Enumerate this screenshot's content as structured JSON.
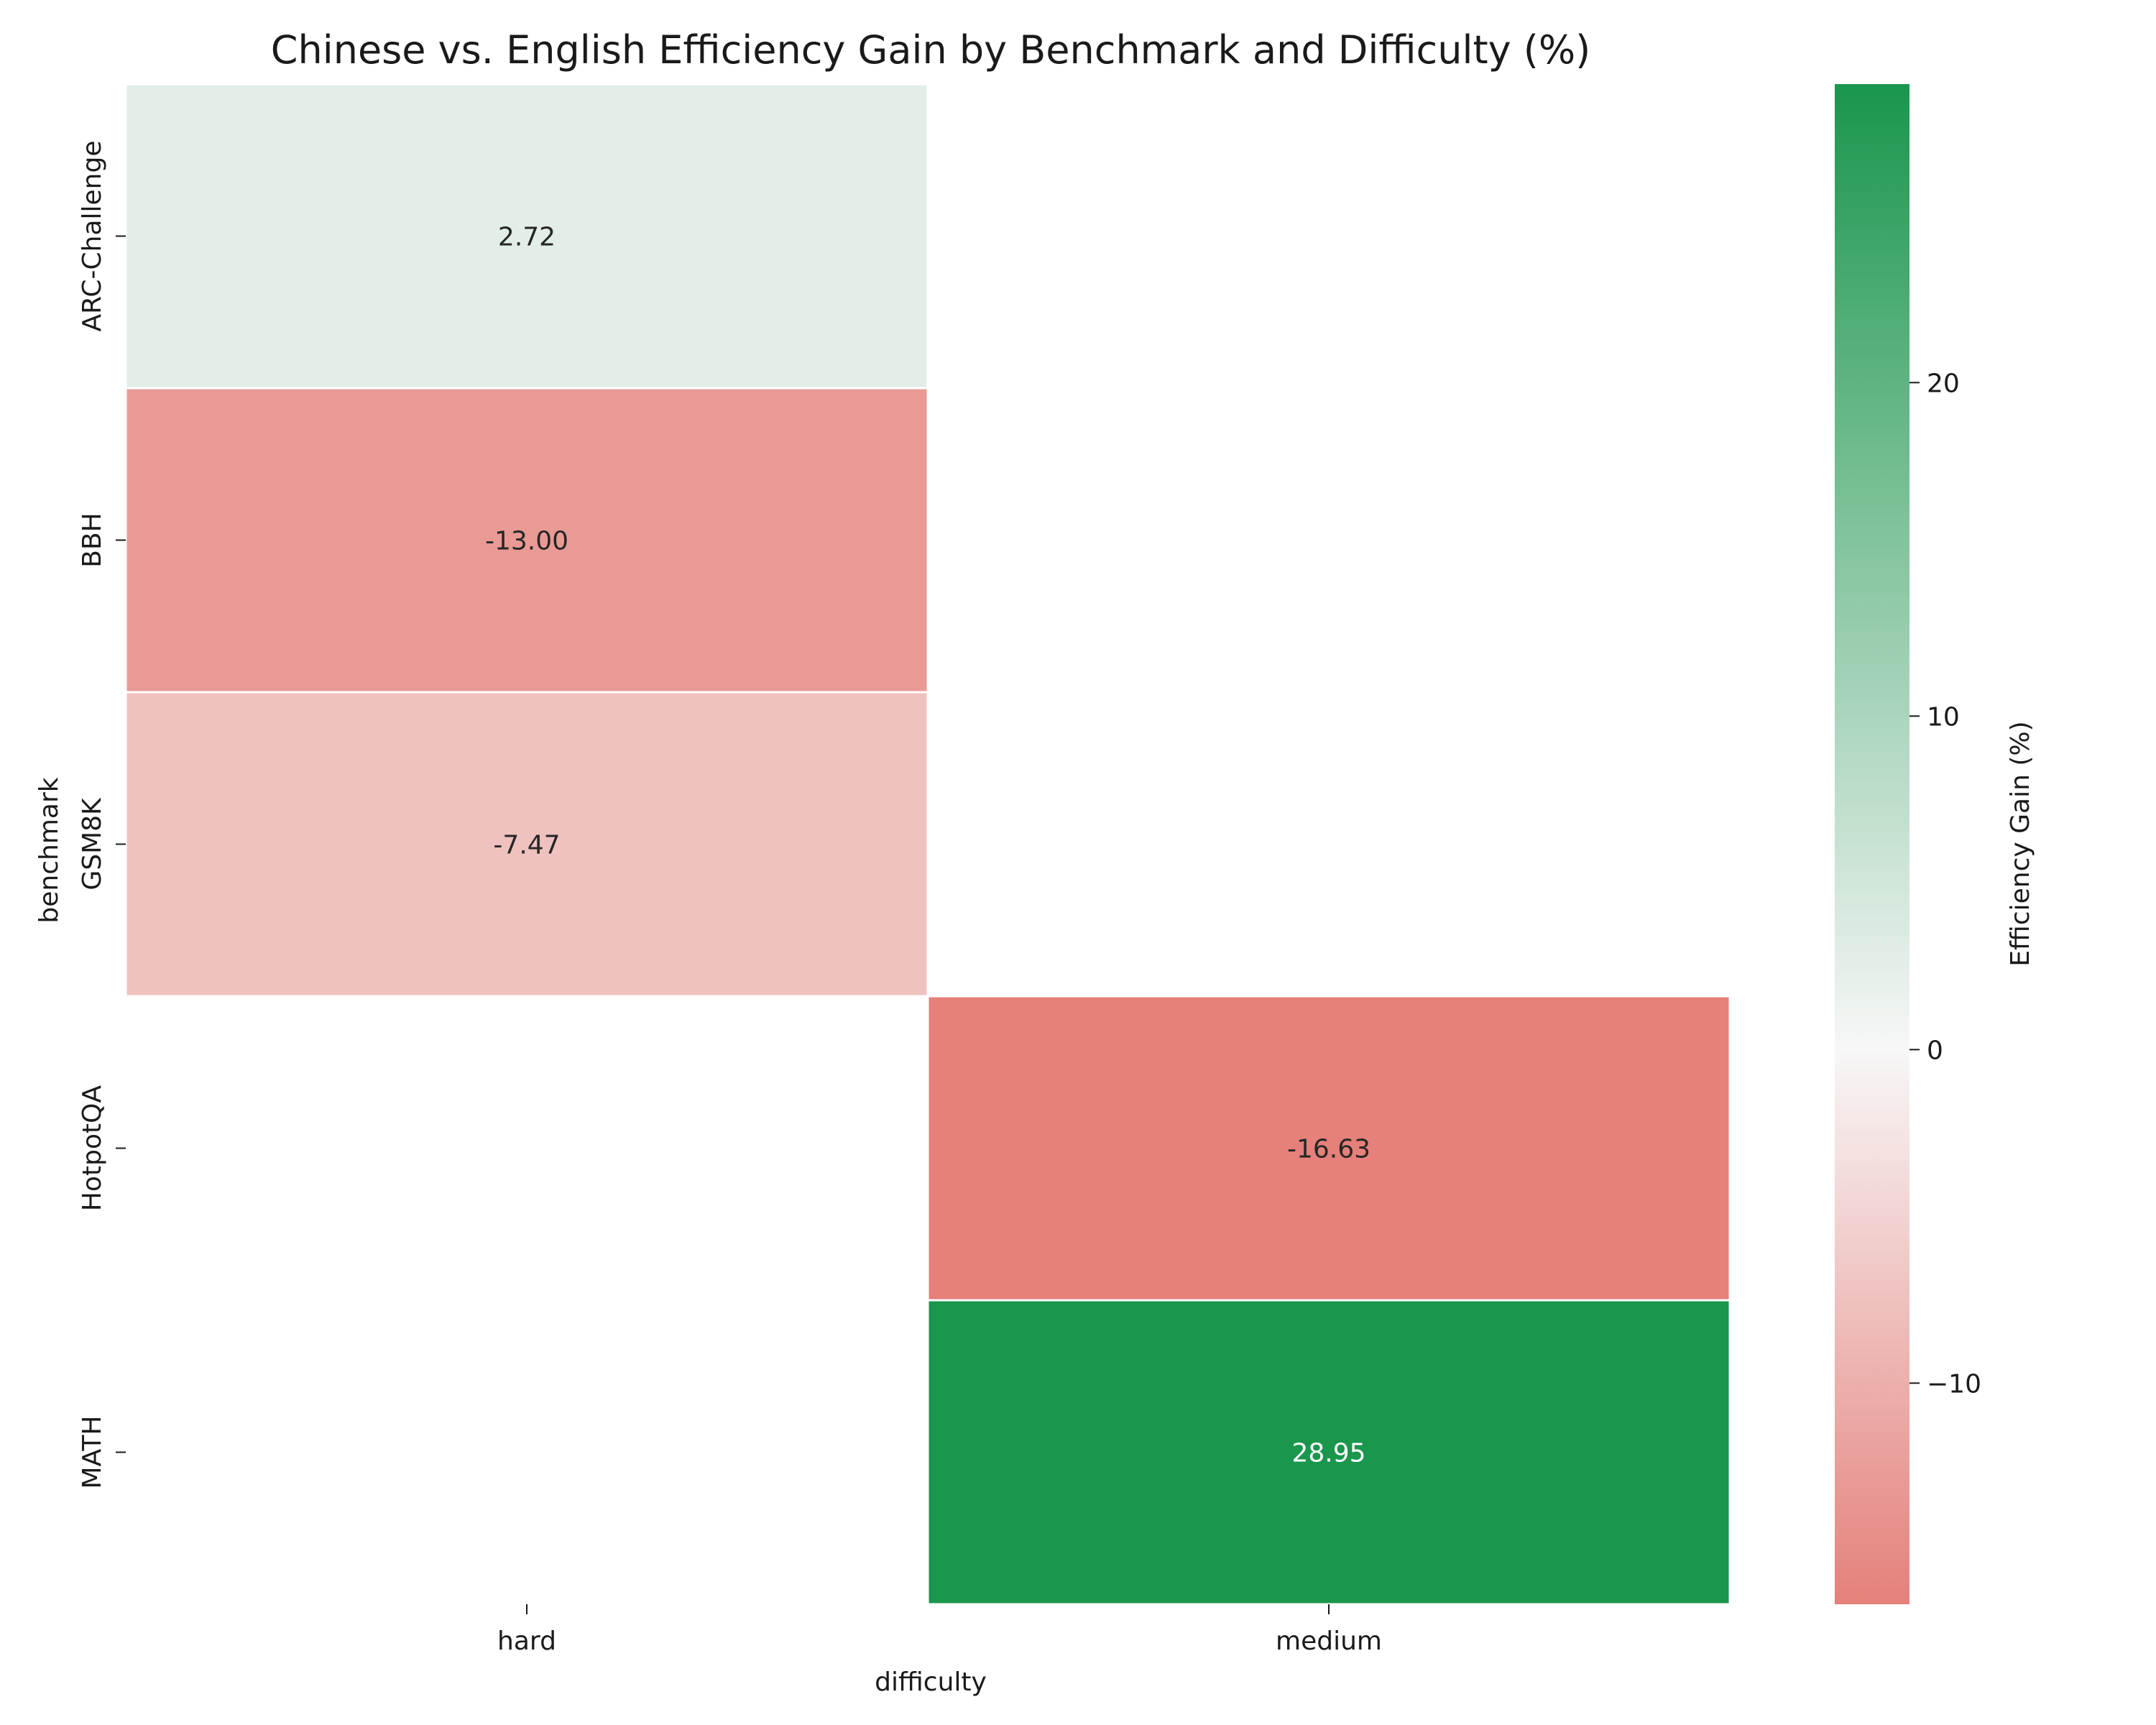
{
  "chart_data": {
    "type": "heatmap",
    "title": "Chinese vs. English Efficiency Gain by Benchmark and Difficulty (%)",
    "xlabel": "difficulty",
    "ylabel": "benchmark",
    "x_categories": [
      "hard",
      "medium"
    ],
    "y_categories": [
      "ARC-Challenge",
      "BBH",
      "GSM8K",
      "HotpotQA",
      "MATH"
    ],
    "values": [
      [
        2.72,
        null
      ],
      [
        -13.0,
        null
      ],
      [
        -7.47,
        null
      ],
      [
        null,
        -16.63
      ],
      [
        null,
        28.95
      ]
    ],
    "value_format": "0.00",
    "colorbar": {
      "label": "Efficiency Gain (%)",
      "min": -16.63,
      "max": 28.95,
      "center": 0,
      "ticks": [
        -10,
        0,
        10,
        20
      ],
      "tick_labels": [
        "−10",
        "0",
        "10",
        "20"
      ],
      "colors": {
        "negative": "#e5807a",
        "center": "#f7f7f7",
        "positive": "#1a964d"
      }
    }
  }
}
